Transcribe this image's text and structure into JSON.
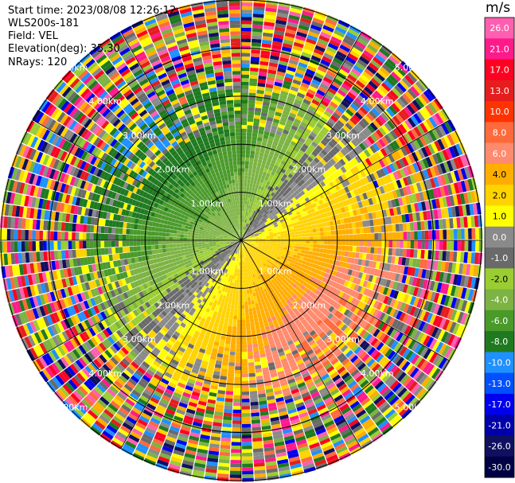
{
  "header": {
    "start_time": "Start time: 2023/08/08 12:26:12",
    "instrument": "WLS200s-181",
    "field": "Field: VEL",
    "elevation": "Elevation(deg): 35.30",
    "nrays": "NRays: 120"
  },
  "colorbar": {
    "unit": "m/s",
    "ticks": [
      "26.0",
      "21.0",
      "17.0",
      "13.0",
      "10.0",
      "8.0",
      "6.0",
      "4.0",
      "2.0",
      "1.0",
      "0.0",
      "-1.0",
      "-2.0",
      "-4.0",
      "-6.0",
      "-8.0",
      "-10.0",
      "-13.0",
      "-17.0",
      "-21.0",
      "-26.0",
      "-30.0"
    ],
    "colors": [
      "#ff5fb0",
      "#ff1a8c",
      "#ff0022",
      "#e51d1d",
      "#ff3300",
      "#ff6a3c",
      "#ff8a6e",
      "#ffae00",
      "#ffd300",
      "#ffff00",
      "#8a8a8a",
      "#6a6a6a",
      "#9acd32",
      "#7cb342",
      "#4a9a2a",
      "#1f7a1f",
      "#1e90ff",
      "#0050ff",
      "#0000ee",
      "#0000aa",
      "#101060",
      "#000044"
    ]
  },
  "chart_data": {
    "type": "heatmap",
    "projection": "polar-ppi",
    "field": "VEL",
    "units": "m/s",
    "nrays": 120,
    "elevation_deg": 35.3,
    "range_rings_km": [
      1.0,
      2.0,
      3.0,
      4.0,
      5.0
    ],
    "range_labels": [
      "1.00km",
      "2.00km",
      "3.00km",
      "4.00km",
      "5.00km"
    ],
    "clim": [
      -30,
      26
    ],
    "pattern": "Negative velocities (blue/green) toward north-west, positive velocities (orange/yellow) toward south-east, noisy multicolour beyond about 3 km"
  }
}
